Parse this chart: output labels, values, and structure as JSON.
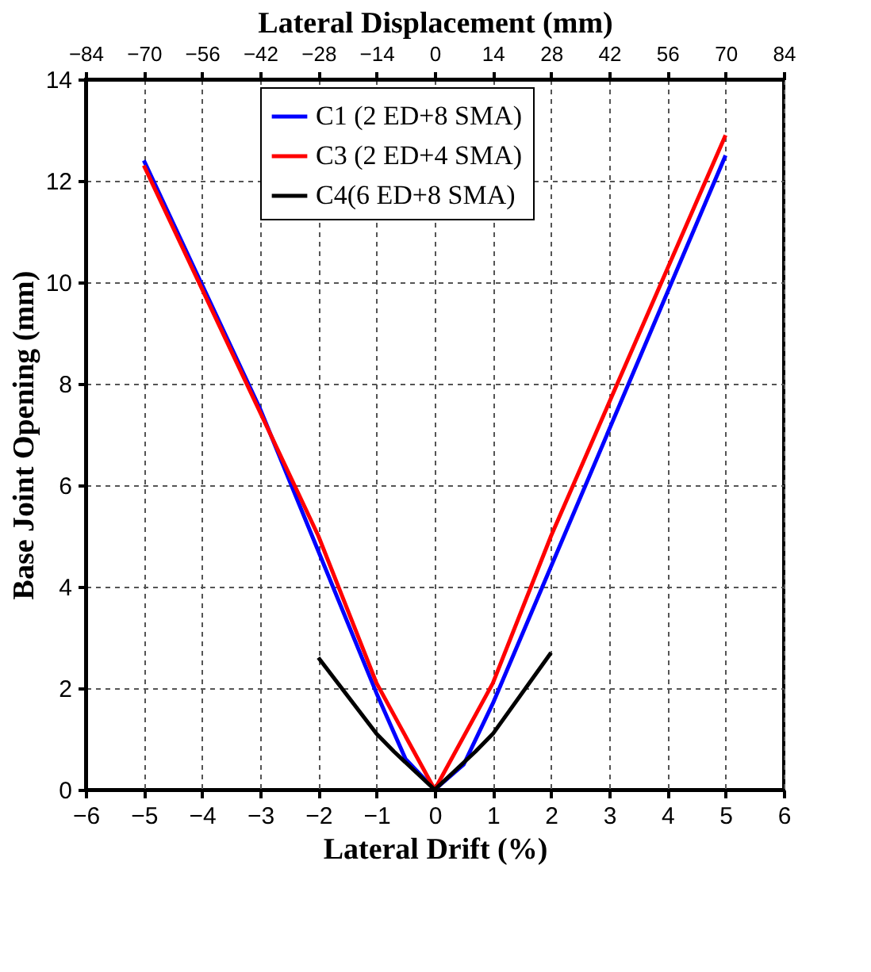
{
  "chart_data": {
    "type": "line",
    "xlabel": "Lateral Drift (%)",
    "ylabel": "Base Joint Opening (mm)",
    "x2label": "Lateral Displacement (mm)",
    "xlim": [
      -6,
      6
    ],
    "xticks": [
      -6,
      -5,
      -4,
      -3,
      -2,
      -1,
      0,
      1,
      2,
      3,
      4,
      5,
      6
    ],
    "x2lim": [
      -84,
      84
    ],
    "x2ticks": [
      -84,
      -70,
      -56,
      -42,
      -28,
      -14,
      0,
      14,
      28,
      42,
      56,
      70,
      84
    ],
    "ylim": [
      0,
      14
    ],
    "yticks": [
      0,
      2,
      4,
      6,
      8,
      10,
      12,
      14
    ],
    "grid": true,
    "legend": "top",
    "marker": "none",
    "line_style": "solid",
    "series": [
      {
        "name": "C1 (2 ED+8 SMA)",
        "color": "#0000ff",
        "x": [
          -5,
          -3,
          -2,
          -1,
          -0.5,
          0,
          0.5,
          1,
          2,
          3,
          5
        ],
        "values": [
          12.4,
          7.5,
          4.7,
          1.9,
          0.6,
          0,
          0.5,
          1.7,
          4.4,
          7.1,
          12.5
        ]
      },
      {
        "name": "C3 (2 ED+4 SMA)",
        "color": "#ff0000",
        "x": [
          -5,
          -2,
          -1,
          0,
          1,
          2,
          5
        ],
        "values": [
          12.3,
          5.0,
          2.1,
          0,
          2.1,
          5.0,
          12.9
        ]
      },
      {
        "name": "C4(6 ED+8 SMA)",
        "color": "#000000",
        "x": [
          -2,
          -1,
          -0.7,
          0,
          0.7,
          1,
          2
        ],
        "values": [
          2.6,
          1.1,
          0.75,
          0,
          0.75,
          1.1,
          2.7
        ]
      }
    ]
  }
}
